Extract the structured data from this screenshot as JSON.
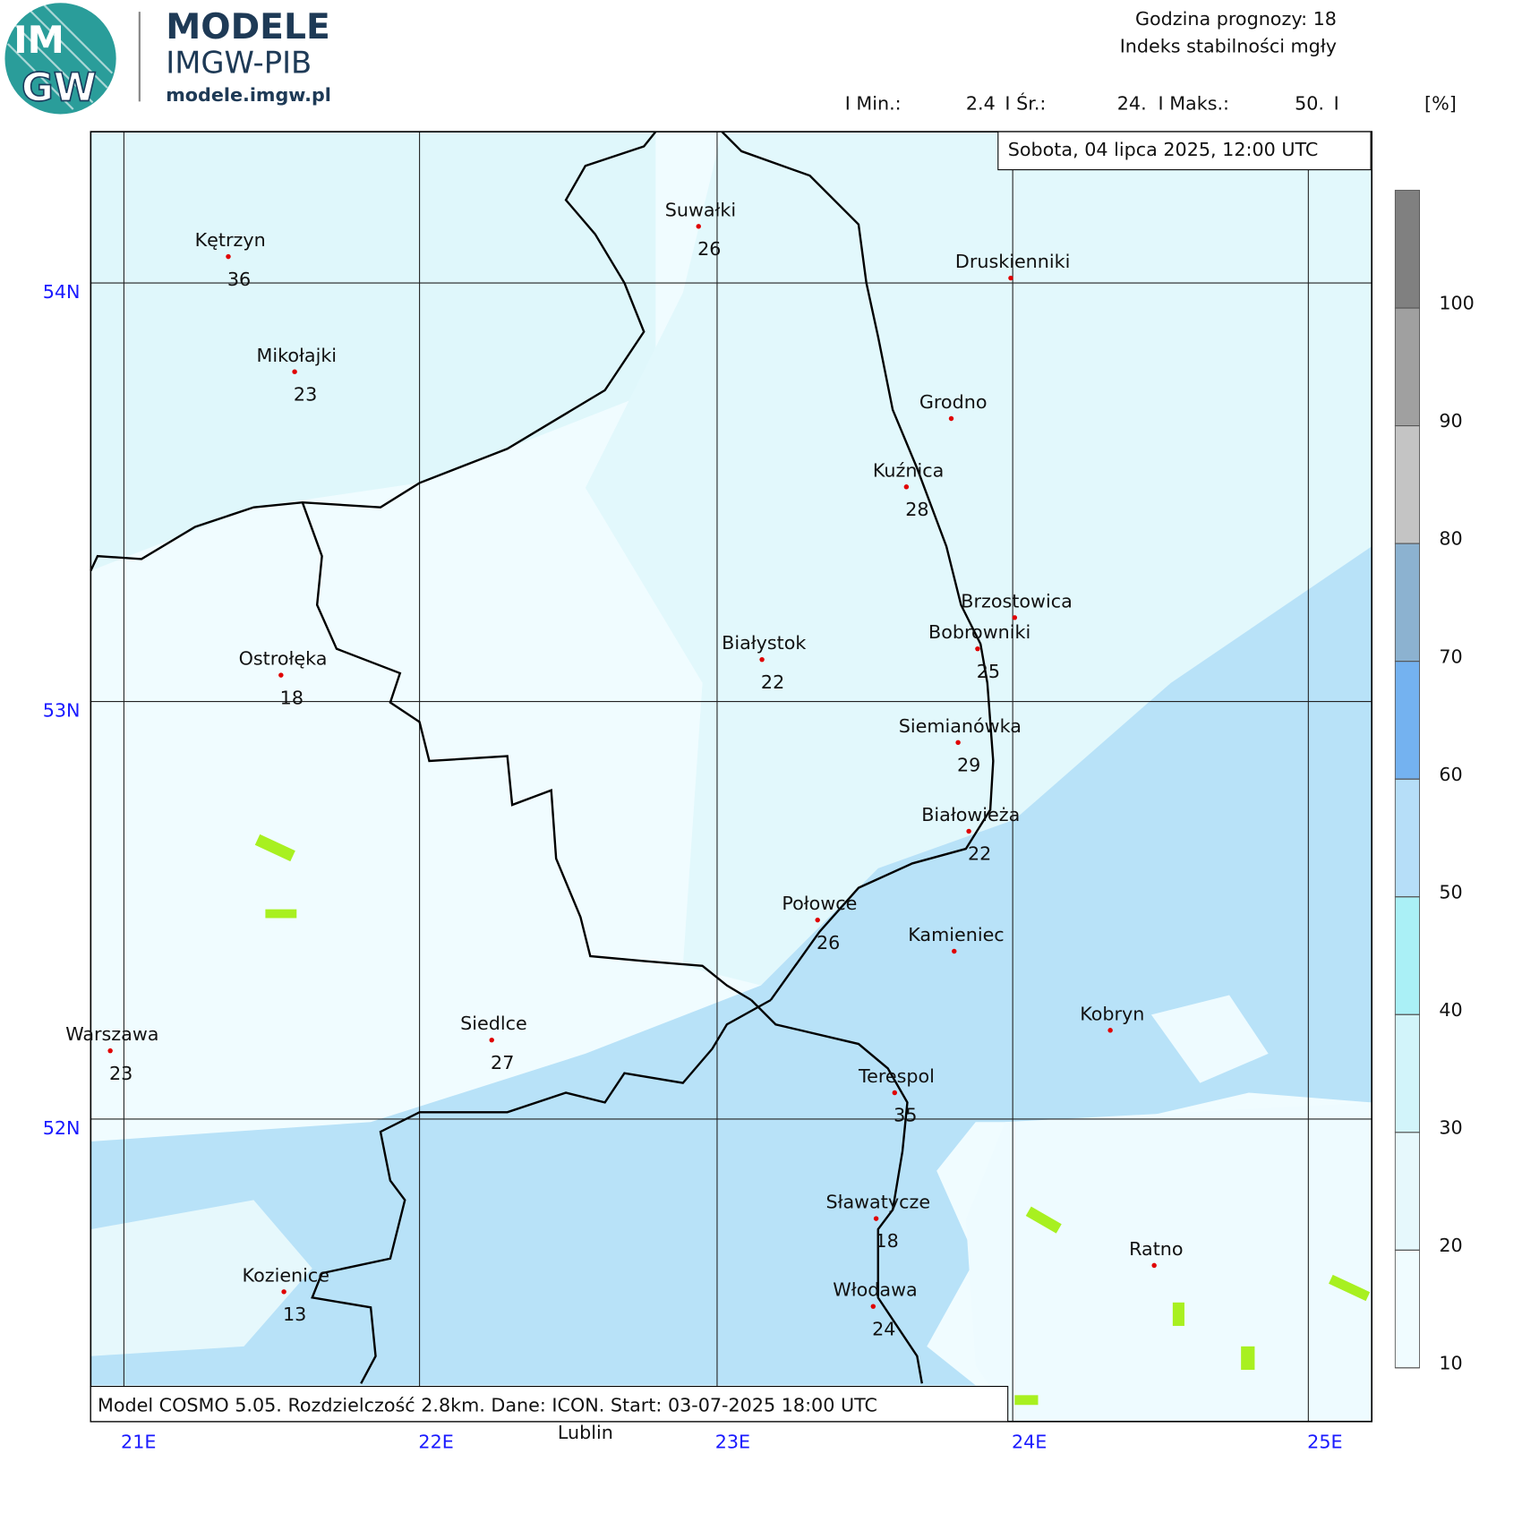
{
  "header": {
    "logo_top": "IM",
    "logo_bottom": "GW",
    "brand": "MODELE",
    "org": "IMGW-PIB",
    "url": "modele.imgw.pl"
  },
  "info": {
    "forecast_hour": "Godzina prognozy: 18",
    "product": "Indeks stabilności mgły",
    "stats": [
      "I Min.:",
      "2.4",
      "I Śr.:",
      "24.",
      "I Maks.:",
      "50.",
      "I",
      "[%]"
    ]
  },
  "date": "Sobota, 04 lipca 2025, 12:00 UTC",
  "footer": "Model COSMO 5.05. Rozdzielczość 2.8km. Dane: ICON. Start: 03-07-2025 18:00 UTC",
  "offmap_label": "Lublin",
  "lat_labels": [
    "54N",
    "53N",
    "52N"
  ],
  "lon_labels": [
    "21E",
    "22E",
    "23E",
    "24E",
    "25E"
  ],
  "cities": [
    {
      "name": "Kętrzyn",
      "value": 36
    },
    {
      "name": "Suwałki",
      "value": 26
    },
    {
      "name": "Druskienniki"
    },
    {
      "name": "Mikołajki",
      "value": 23
    },
    {
      "name": "Grodno"
    },
    {
      "name": "Kuźnica",
      "value": 28
    },
    {
      "name": "Brzostowica"
    },
    {
      "name": "Bobrowniki",
      "value": 25
    },
    {
      "name": "Białystok",
      "value": 22
    },
    {
      "name": "Ostrołęka",
      "value": 18
    },
    {
      "name": "Siemianówka",
      "value": 29
    },
    {
      "name": "Białowieża",
      "value": 22
    },
    {
      "name": "Połowce",
      "value": 26
    },
    {
      "name": "Kamieniec"
    },
    {
      "name": "Kobryn"
    },
    {
      "name": "Warszawa",
      "value": 23
    },
    {
      "name": "Siedlce",
      "value": 27
    },
    {
      "name": "Terespol",
      "value": 35
    },
    {
      "name": "Sławatycze",
      "value": 18
    },
    {
      "name": "Ratno"
    },
    {
      "name": "Kozienice",
      "value": 13
    },
    {
      "name": "Włodawa",
      "value": 24
    }
  ],
  "colorbar": {
    "lim": [
      10,
      110
    ],
    "ticks": [
      10,
      20,
      30,
      40,
      50,
      60,
      70,
      80,
      90,
      100
    ],
    "colors": [
      "#f0fcff",
      "#e6f8fc",
      "#d2f4fa",
      "#aaf0f6",
      "#b6def8",
      "#74b2f0",
      "#8cb2d0",
      "#c4c4c4",
      "#a0a0a0",
      "#808080"
    ]
  }
}
